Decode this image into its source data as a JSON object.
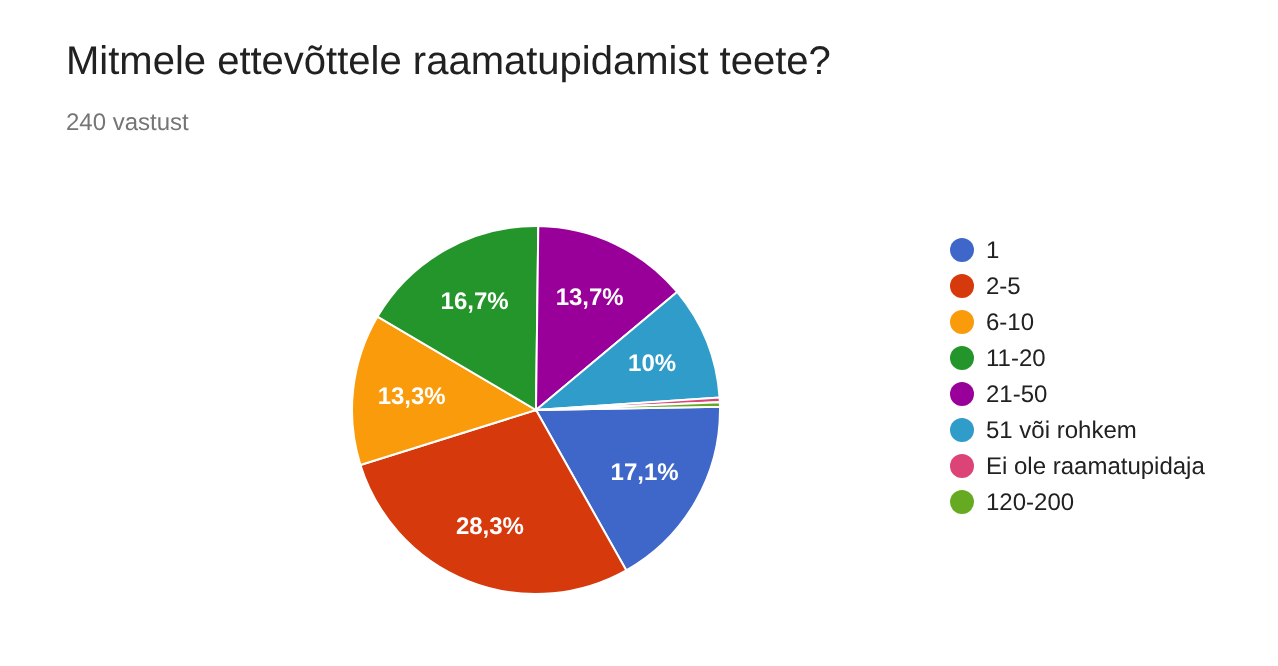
{
  "chart_data": {
    "type": "pie",
    "title": "Mitmele ettevõttele raamatupidamist teete?",
    "subtitle": "240 vastust",
    "categories": [
      "1",
      "2-5",
      "6-10",
      "11-20",
      "21-50",
      "51 või rohkem",
      "Ei ole raamatupidaja",
      "120-200"
    ],
    "values": [
      17.1,
      28.3,
      13.3,
      16.7,
      13.7,
      10,
      0.4,
      0.4
    ],
    "colors": [
      "#3f67c9",
      "#d63a0c",
      "#f99b0b",
      "#24952a",
      "#990099",
      "#2f9cc9",
      "#dc4478",
      "#66aa22"
    ],
    "value_labels": [
      "17,1%",
      "28,3%",
      "13,3%",
      "16,7%",
      "13,7%",
      "10%",
      null,
      null
    ],
    "legend": "right"
  }
}
